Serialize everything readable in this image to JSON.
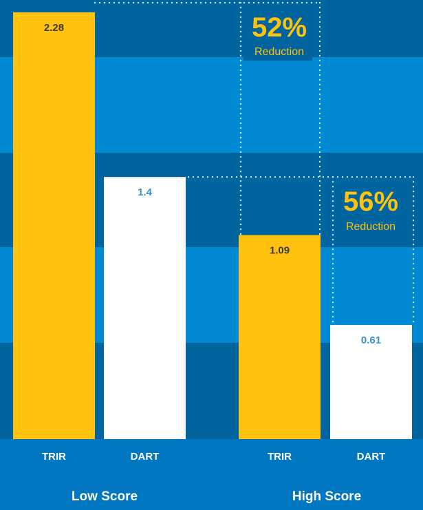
{
  "chart_data": {
    "type": "bar",
    "groups": [
      {
        "name": "Low Score",
        "bars": [
          {
            "category": "TRIR",
            "value": 2.28,
            "label": "2.28",
            "color": "#ffc20e"
          },
          {
            "category": "DART",
            "value": 1.4,
            "label": "1.4",
            "color": "#ffffff"
          }
        ]
      },
      {
        "name": "High Score",
        "bars": [
          {
            "category": "TRIR",
            "value": 1.09,
            "label": "1.09",
            "color": "#ffc20e"
          },
          {
            "category": "DART",
            "value": 0.61,
            "label": "0.61",
            "color": "#ffffff"
          }
        ]
      }
    ],
    "annotations": [
      {
        "metric": "TRIR",
        "percent": "52%",
        "text": "Reduction"
      },
      {
        "metric": "DART",
        "percent": "56%",
        "text": "Reduction"
      }
    ],
    "grid": "alternating horizontal bands",
    "colors": {
      "trir": "#ffc20e",
      "dart": "#ffffff",
      "band_dark": "#00649e",
      "band_light": "#0289d4",
      "axis_area": "#0077c0",
      "trir_label": "#3a3a3a",
      "dart_label": "#3b8fd0",
      "annotation": "#ffc20e",
      "dotted_line": "#cfe6f7",
      "axis_text": "#ffffff"
    }
  }
}
